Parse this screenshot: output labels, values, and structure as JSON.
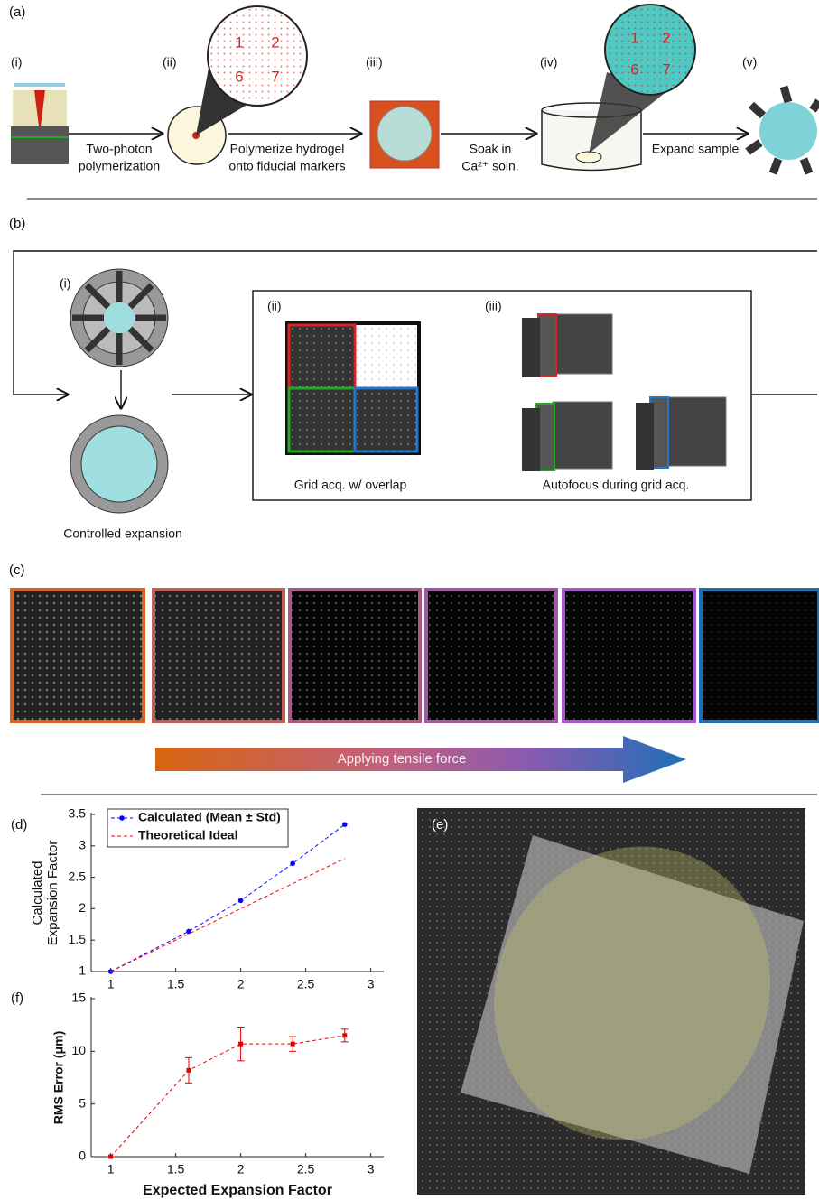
{
  "panel_a": {
    "label": "(a)",
    "steps": [
      "(i)",
      "(ii)",
      "(iii)",
      "(iv)",
      "(v)"
    ],
    "captions": [
      [
        "Two-photon",
        "polymerization"
      ],
      [
        "Polymerize hydrogel",
        "onto fiducial markers"
      ],
      [
        "Soak in",
        "Ca²⁺ soln."
      ],
      [
        "Expand sample"
      ]
    ],
    "zoom_numbers": [
      "1",
      "2",
      "6",
      "7"
    ]
  },
  "panel_b": {
    "label": "(b)",
    "steps": [
      "(i)",
      "(ii)",
      "(iii)"
    ],
    "captions": [
      "Controlled expansion",
      "Grid acq. w/ overlap",
      "Autofocus during grid acq."
    ]
  },
  "panel_c": {
    "label": "(c)",
    "arrow_text": "Applying tensile force"
  },
  "panel_e": {
    "label": "(e)"
  },
  "chart_data": [
    {
      "type": "line",
      "panel_label": "(d)",
      "ylabel": [
        "Calculated",
        "Expansion Factor"
      ],
      "x": [
        1,
        1.6,
        2,
        2.4,
        2.8
      ],
      "series": [
        {
          "name": "Calculated (Mean ± Std)",
          "color": "#0000ff",
          "values": [
            1,
            1.64,
            2.13,
            2.72,
            3.34
          ]
        },
        {
          "name": "Theoretical Ideal",
          "color": "#ff0000",
          "values": [
            1,
            1.6,
            2,
            2.4,
            2.8
          ]
        }
      ],
      "xlim": [
        0.85,
        3.1
      ],
      "ylim": [
        1,
        3.5
      ],
      "xticks": [
        1,
        1.5,
        2,
        2.5,
        3
      ],
      "yticks": [
        1,
        1.5,
        2,
        2.5,
        3,
        3.5
      ],
      "legend": "upper left"
    },
    {
      "type": "line",
      "panel_label": "(f)",
      "ylabel": "RMS Error (μm)",
      "xlabel": "Expected Expansion Factor",
      "x": [
        1,
        1.6,
        2,
        2.4,
        2.8
      ],
      "series": [
        {
          "color": "#e00000",
          "values": [
            0,
            8.2,
            10.7,
            10.7,
            11.5
          ],
          "errors": [
            0,
            1.2,
            1.6,
            0.7,
            0.6
          ]
        }
      ],
      "xlim": [
        0.85,
        3.1
      ],
      "ylim": [
        0,
        15
      ],
      "xticks": [
        1,
        1.5,
        2,
        2.5,
        3
      ],
      "yticks": [
        0,
        5,
        10,
        15
      ]
    }
  ]
}
